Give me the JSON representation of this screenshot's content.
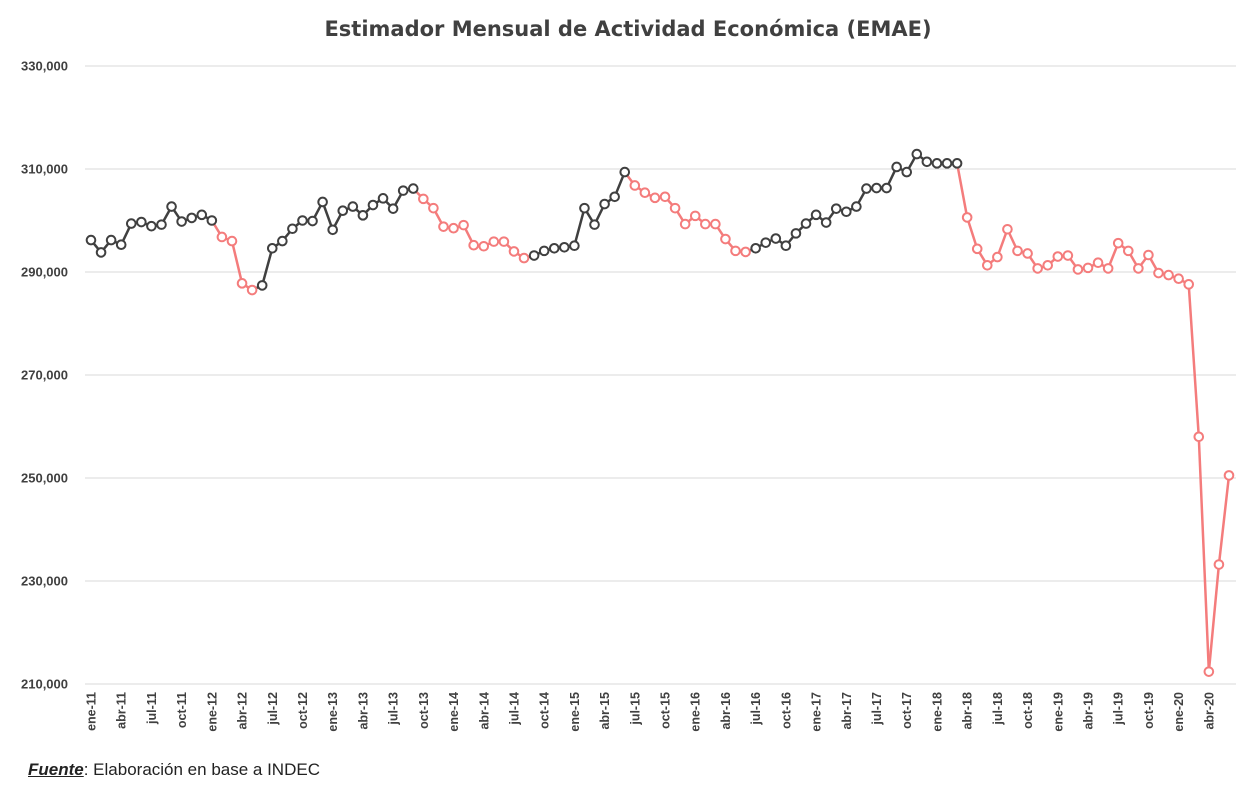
{
  "source": {
    "label": "Fuente",
    "text": ": Elaboración en base a INDEC"
  },
  "colors": {
    "growth": "#404040",
    "decline": "#f47c7c",
    "grid": "#d9d9d9",
    "axis_text": "#404040"
  },
  "chart_data": {
    "type": "line",
    "title": "Estimador Mensual de Actividad Económica (EMAE)",
    "xlabel": "",
    "ylabel": "",
    "ylim": [
      210000,
      330000
    ],
    "yticks": [
      210000,
      230000,
      250000,
      270000,
      290000,
      310000,
      330000
    ],
    "ytick_labels": [
      "210,000",
      "230,000",
      "250,000",
      "270,000",
      "290,000",
      "310,000",
      "330,000"
    ],
    "grid": true,
    "legend": "none",
    "segment_coloring": "line and markers dark gray during growth periods, salmon red during decline periods",
    "x": [
      "ene-11",
      "feb-11",
      "mar-11",
      "abr-11",
      "may-11",
      "jun-11",
      "jul-11",
      "ago-11",
      "sep-11",
      "oct-11",
      "nov-11",
      "dic-11",
      "ene-12",
      "feb-12",
      "mar-12",
      "abr-12",
      "may-12",
      "jun-12",
      "jul-12",
      "ago-12",
      "sep-12",
      "oct-12",
      "nov-12",
      "dic-12",
      "ene-13",
      "feb-13",
      "mar-13",
      "abr-13",
      "may-13",
      "jun-13",
      "jul-13",
      "ago-13",
      "sep-13",
      "oct-13",
      "nov-13",
      "dic-13",
      "ene-14",
      "feb-14",
      "mar-14",
      "abr-14",
      "may-14",
      "jun-14",
      "jul-14",
      "ago-14",
      "sep-14",
      "oct-14",
      "nov-14",
      "dic-14",
      "ene-15",
      "feb-15",
      "mar-15",
      "abr-15",
      "may-15",
      "jun-15",
      "jul-15",
      "ago-15",
      "sep-15",
      "oct-15",
      "nov-15",
      "dic-15",
      "ene-16",
      "feb-16",
      "mar-16",
      "abr-16",
      "may-16",
      "jun-16",
      "jul-16",
      "ago-16",
      "sep-16",
      "oct-16",
      "nov-16",
      "dic-16",
      "ene-17",
      "feb-17",
      "mar-17",
      "abr-17",
      "may-17",
      "jun-17",
      "jul-17",
      "ago-17",
      "sep-17",
      "oct-17",
      "nov-17",
      "dic-17",
      "ene-18",
      "feb-18",
      "mar-18",
      "abr-18",
      "may-18",
      "jun-18",
      "jul-18",
      "ago-18",
      "sep-18",
      "oct-18",
      "nov-18",
      "dic-18",
      "ene-19",
      "feb-19",
      "mar-19",
      "abr-19",
      "may-19",
      "jun-19",
      "jul-19",
      "ago-19",
      "sep-19",
      "oct-19",
      "nov-19",
      "dic-19",
      "ene-20",
      "feb-20",
      "mar-20",
      "abr-20",
      "may-20",
      "jun-20"
    ],
    "x_tick_labels": [
      "ene-11",
      "abr-11",
      "jul-11",
      "oct-11",
      "ene-12",
      "abr-12",
      "jul-12",
      "oct-12",
      "ene-13",
      "abr-13",
      "jul-13",
      "oct-13",
      "ene-14",
      "abr-14",
      "jul-14",
      "oct-14",
      "ene-15",
      "abr-15",
      "jul-15",
      "oct-15",
      "ene-16",
      "abr-16",
      "jul-16",
      "oct-16",
      "ene-17",
      "abr-17",
      "jul-17",
      "oct-17",
      "ene-18",
      "abr-18",
      "jul-18",
      "oct-18",
      "ene-19",
      "abr-19",
      "jul-19",
      "oct-19",
      "ene-20",
      "abr-20"
    ],
    "values": [
      296200,
      293800,
      296200,
      295300,
      299400,
      299700,
      298900,
      299200,
      302700,
      299800,
      300500,
      301100,
      300000,
      296800,
      296000,
      287800,
      286500,
      287400,
      294600,
      296000,
      298400,
      300000,
      299900,
      303600,
      298200,
      301900,
      302700,
      301000,
      303000,
      304300,
      302300,
      305800,
      306200,
      304200,
      302400,
      298800,
      298500,
      299100,
      295200,
      295000,
      295900,
      295900,
      294000,
      292700,
      293200,
      294100,
      294600,
      294800,
      295100,
      302400,
      299200,
      303200,
      304600,
      309400,
      306800,
      305400,
      304400,
      304600,
      302400,
      299300,
      300900,
      299300,
      299300,
      296400,
      294100,
      293900,
      294600,
      295700,
      296500,
      295100,
      297500,
      299400,
      301100,
      299600,
      302300,
      301700,
      302700,
      306200,
      306300,
      306300,
      310400,
      309400,
      312900,
      311400,
      311100,
      311100,
      311100,
      300600,
      294500,
      291300,
      292900,
      298300,
      294100,
      293600,
      290700,
      291300,
      293000,
      293200,
      290500,
      290800,
      291800,
      290700,
      295600,
      294100,
      290700,
      293300,
      289800,
      289400,
      288700,
      287600,
      258000,
      212400,
      233200,
      250500
    ],
    "trend": [
      "up",
      "up",
      "up",
      "up",
      "up",
      "up",
      "up",
      "up",
      "up",
      "up",
      "up",
      "up",
      "up",
      "down",
      "down",
      "down",
      "down",
      "up",
      "up",
      "up",
      "up",
      "up",
      "up",
      "up",
      "up",
      "up",
      "up",
      "up",
      "up",
      "up",
      "up",
      "up",
      "up",
      "down",
      "down",
      "down",
      "down",
      "down",
      "down",
      "down",
      "down",
      "down",
      "down",
      "down",
      "up",
      "up",
      "up",
      "up",
      "up",
      "up",
      "up",
      "up",
      "up",
      "up",
      "down",
      "down",
      "down",
      "down",
      "down",
      "down",
      "down",
      "down",
      "down",
      "down",
      "down",
      "down",
      "up",
      "up",
      "up",
      "up",
      "up",
      "up",
      "up",
      "up",
      "up",
      "up",
      "up",
      "up",
      "up",
      "up",
      "up",
      "up",
      "up",
      "up",
      "up",
      "up",
      "up",
      "down",
      "down",
      "down",
      "down",
      "down",
      "down",
      "down",
      "down",
      "down",
      "down",
      "down",
      "down",
      "down",
      "down",
      "down",
      "down",
      "down",
      "down",
      "down",
      "down",
      "down",
      "down",
      "down",
      "down",
      "down",
      "down",
      "down"
    ]
  }
}
